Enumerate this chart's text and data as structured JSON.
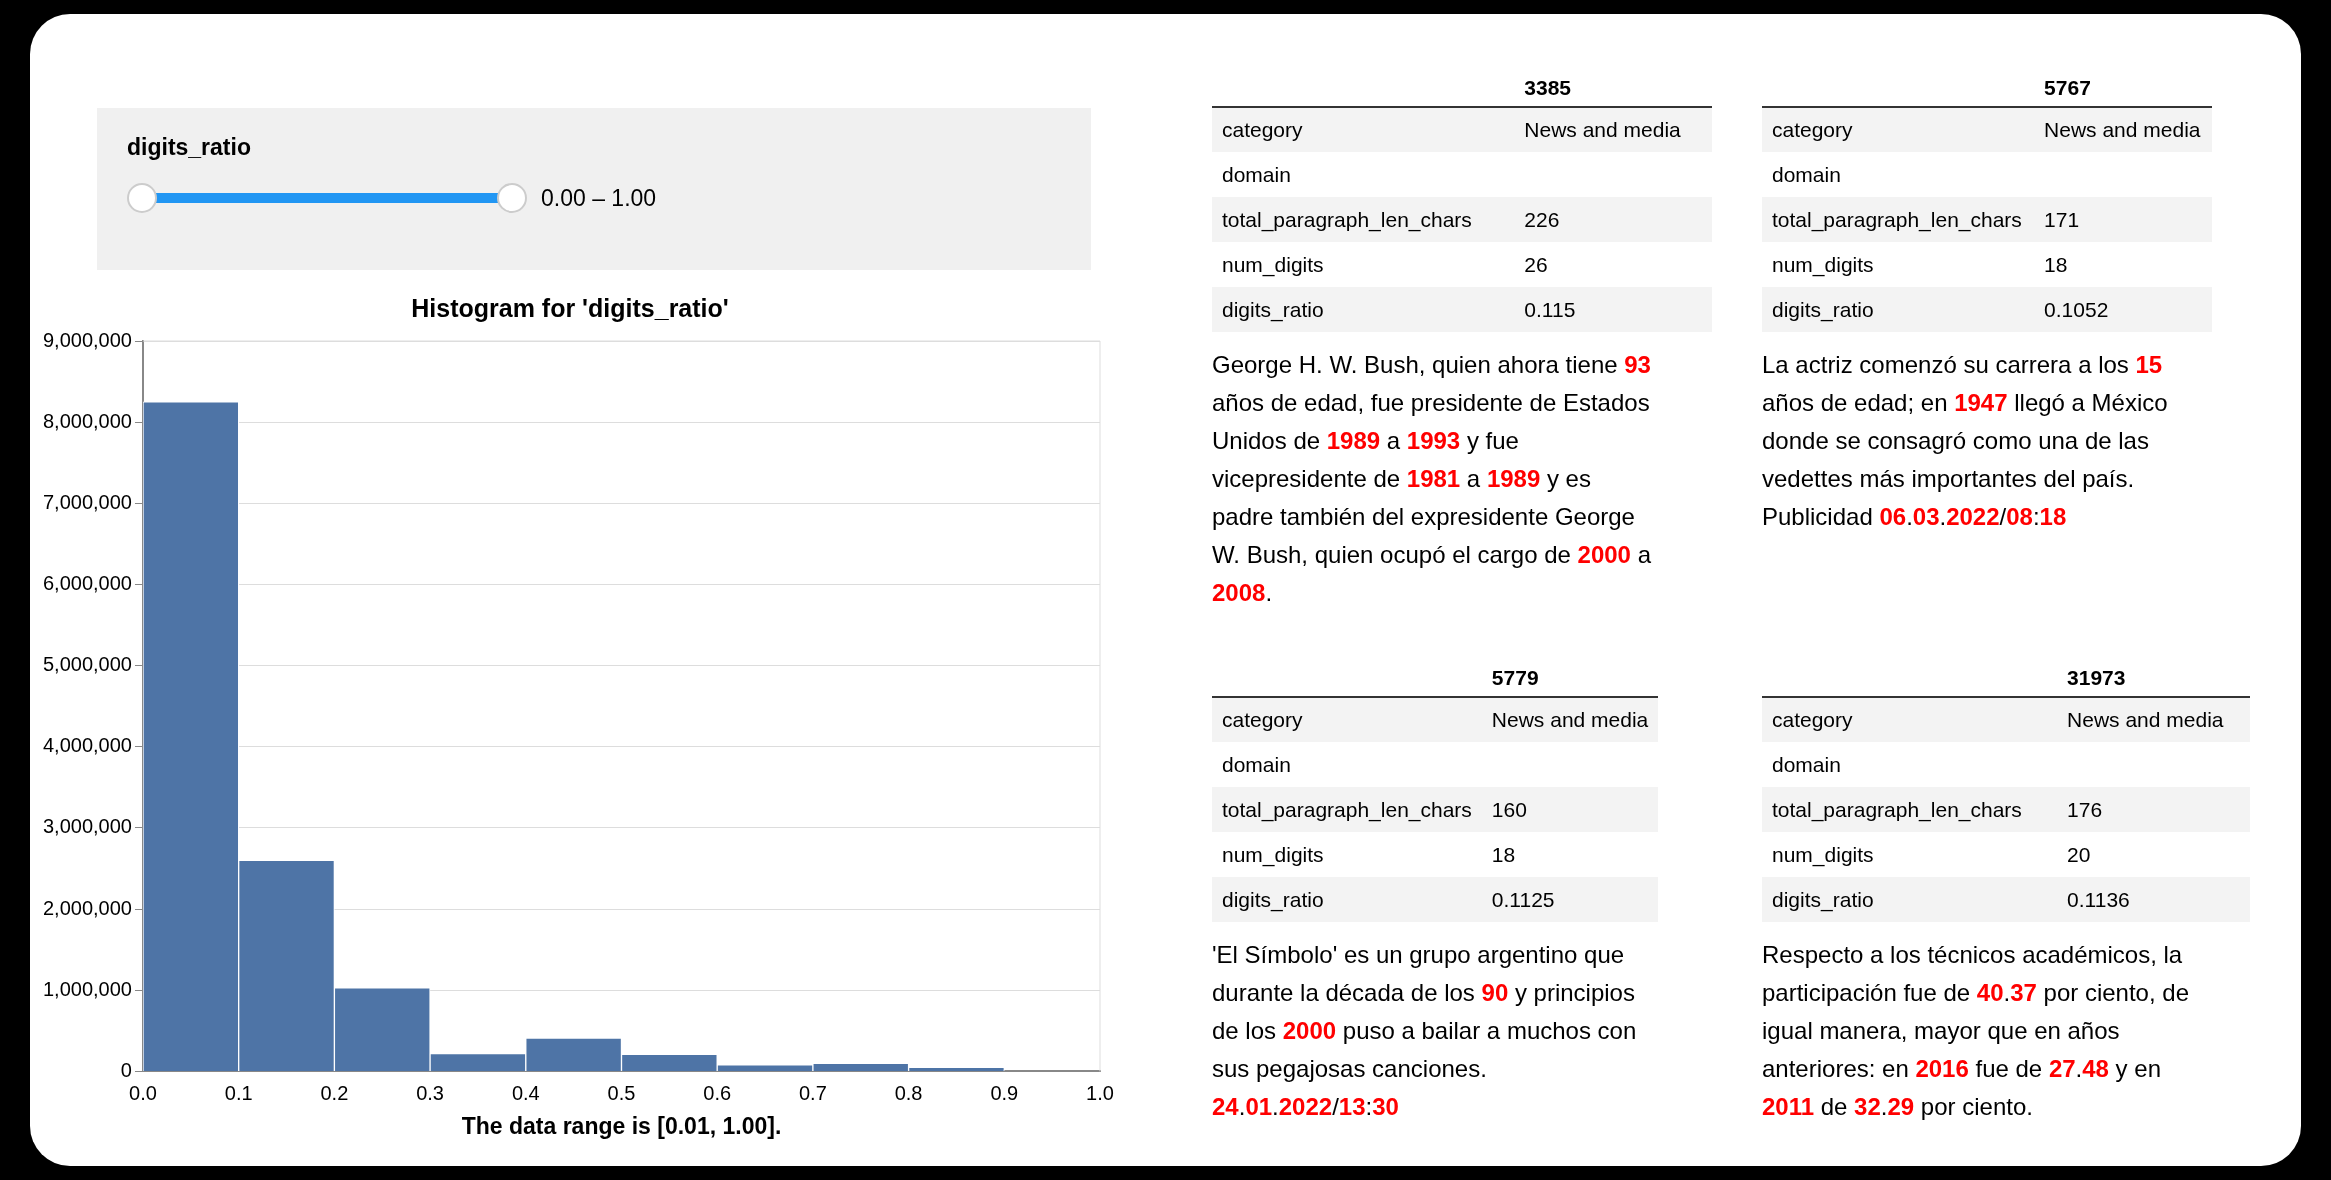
{
  "chart_data": [
    {
      "type": "other",
      "title": "digits_ratio",
      "annotations": [
        "0.00 – 1.00"
      ]
    },
    {
      "type": "histogram",
      "title": "Histogram for 'digits_ratio'",
      "xlabel": "The data range is [0.01, 1.00].",
      "color": "#4e74a6",
      "bins": [
        0,
        0.1,
        0.2,
        0.3,
        0.4,
        0.5,
        0.6,
        0.7,
        0.8,
        0.9,
        1.0
      ],
      "values": [
        8250000,
        2600000,
        1030000,
        220000,
        410000,
        210000,
        80000,
        100000,
        50000,
        0
      ],
      "xlim": [
        0,
        1
      ],
      "xticks": [
        {
          "value": 0,
          "label": "0.0"
        },
        {
          "value": 0.1,
          "label": "0.1"
        },
        {
          "value": 0.2,
          "label": "0.2"
        },
        {
          "value": 0.3,
          "label": "0.3"
        },
        {
          "value": 0.4,
          "label": "0.4"
        },
        {
          "value": 0.5,
          "label": "0.5"
        },
        {
          "value": 0.6,
          "label": "0.6"
        },
        {
          "value": 0.7,
          "label": "0.7"
        },
        {
          "value": 0.8,
          "label": "0.8"
        },
        {
          "value": 0.9,
          "label": "0.9"
        },
        {
          "value": 1.0,
          "label": "1.0"
        }
      ],
      "ylim": [
        0,
        9000000
      ],
      "yticks": [
        0,
        {
          "value": 1000000,
          "label": "1,000,000"
        },
        {
          "value": 2000000,
          "label": "2,000,000"
        },
        {
          "value": 3000000,
          "label": "3,000,000"
        },
        {
          "value": 4000000,
          "label": "4,000,000"
        },
        {
          "value": 5000000,
          "label": "5,000,000"
        },
        {
          "value": 6000000,
          "label": "6,000,000"
        },
        {
          "value": 7000000,
          "label": "7,000,000"
        },
        {
          "value": 8000000,
          "label": "8,000,000"
        },
        {
          "value": 9000000,
          "label": "9,000,000"
        }
      ],
      "grid": "y",
      "legend": false
    },
    {
      "type": "other",
      "title": "3385",
      "categories": [
        "category",
        "domain",
        "total_paragraph_len_chars",
        "num_digits",
        "digits_ratio"
      ],
      "value_labels": [
        "News and media",
        null,
        "226",
        "26",
        "0.115"
      ],
      "annotations": [
        "George H. W. Bush, quien ahora tiene 93 años de edad, fue presidente de Estados Unidos de 1989 a 1993 y fue vicepresidente de 1981 a 1989 y es padre también del expresidente George W. Bush, quien ocupó el cargo de 2000 a 2008."
      ]
    },
    {
      "type": "other",
      "title": "5767",
      "categories": [
        "category",
        "domain",
        "total_paragraph_len_chars",
        "num_digits",
        "digits_ratio"
      ],
      "value_labels": [
        "News and media",
        null,
        "171",
        "18",
        "0.1052"
      ],
      "annotations": [
        "La actriz comenzó su carrera a los 15 años de edad; en 1947 llegó a México donde se consagró como una de las vedettes más importantes del país. Publicidad 06.03.2022/08:18"
      ]
    },
    {
      "type": "other",
      "title": "5779",
      "categories": [
        "category",
        "domain",
        "total_paragraph_len_chars",
        "num_digits",
        "digits_ratio"
      ],
      "value_labels": [
        "News and media",
        null,
        "160",
        "18",
        "0.1125"
      ],
      "annotations": [
        "'El Símbolo' es un grupo argentino que durante la década de los 90 y principios de los 2000 puso a bailar a muchos con sus pegajosas canciones. 24.01.2022/13:30"
      ]
    },
    {
      "type": "other",
      "title": "31973",
      "categories": [
        "category",
        "domain",
        "total_paragraph_len_chars",
        "num_digits",
        "digits_ratio"
      ],
      "value_labels": [
        "News and media",
        null,
        "176",
        "20",
        "0.1136"
      ],
      "annotations": [
        "Respecto a los técnicos académicos, la participación fue de 40.37 por ciento, de igual manera, mayor que en años anteriores: en 2016 fue de 27.48 y en 2011 de 32.29 por ciento."
      ]
    }
  ]
}
